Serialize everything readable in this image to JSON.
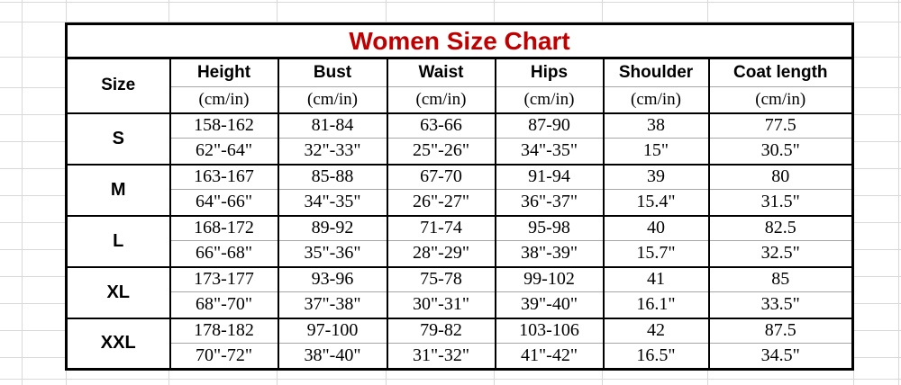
{
  "sheet": {
    "title": "Women Size Chart"
  },
  "colors": {
    "title_red": "#C00000",
    "border_black": "#000000",
    "thin_rule_gray": "#A6A6A6",
    "gridline_gray": "#D9D9D9"
  },
  "table": {
    "header": {
      "size_label": "Size",
      "columns": [
        "Height",
        "Bust",
        "Waist",
        "Hips",
        "Shoulder",
        "Coat length"
      ],
      "unit": "(cm/in)"
    },
    "rows": [
      {
        "size": "S",
        "cm": [
          "158-162",
          "81-84",
          "63-66",
          "87-90",
          "38",
          "77.5"
        ],
        "inch": [
          "62\"-64\"",
          "32\"-33\"",
          "25\"-26\"",
          "34\"-35\"",
          "15\"",
          "30.5\""
        ]
      },
      {
        "size": "M",
        "cm": [
          "163-167",
          "85-88",
          "67-70",
          "91-94",
          "39",
          "80"
        ],
        "inch": [
          "64\"-66\"",
          "34\"-35\"",
          "26\"-27\"",
          "36\"-37\"",
          "15.4\"",
          "31.5\""
        ]
      },
      {
        "size": "L",
        "cm": [
          "168-172",
          "89-92",
          "71-74",
          "95-98",
          "40",
          "82.5"
        ],
        "inch": [
          "66\"-68\"",
          "35\"-36\"",
          "28\"-29\"",
          "38\"-39\"",
          "15.7\"",
          "32.5\""
        ]
      },
      {
        "size": "XL",
        "cm": [
          "173-177",
          "93-96",
          "75-78",
          "99-102",
          "41",
          "85"
        ],
        "inch": [
          "68\"-70\"",
          "37\"-38\"",
          "30\"-31\"",
          "39\"-40\"",
          "16.1\"",
          "33.5\""
        ]
      },
      {
        "size": "XXL",
        "cm": [
          "178-182",
          "97-100",
          "79-82",
          "103-106",
          "42",
          "87.5"
        ],
        "inch": [
          "70\"-72\"",
          "38\"-40\"",
          "31\"-32\"",
          "41\"-42\"",
          "16.5\"",
          "34.5\""
        ]
      }
    ]
  }
}
